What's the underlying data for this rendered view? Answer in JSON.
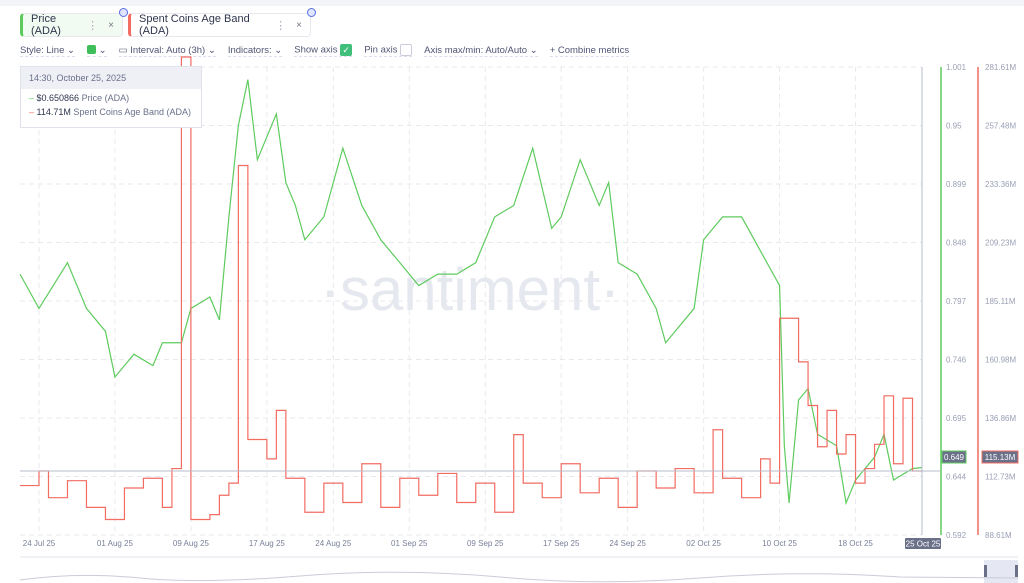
{
  "tabs": [
    {
      "label": "Price (ADA)",
      "color": "#5ecb5e",
      "dots": "⋮",
      "close": "×"
    },
    {
      "label": "Spent Coins Age Band (ADA)",
      "color": "#f26c62",
      "dots": "⋮",
      "close": "×"
    }
  ],
  "toolbar": {
    "style": "Style: Line",
    "interval": "Interval: Auto (3h)",
    "indicators": "Indicators:",
    "show_axis": "Show axis",
    "show_axis_checked": true,
    "pin_axis": "Pin axis",
    "pin_axis_checked": false,
    "axis_minmax": "Axis max/min: Auto/Auto",
    "combine": "+ Combine metrics",
    "line_color": "#3fbf5a"
  },
  "tooltip": {
    "date": "14:30, October 25, 2025",
    "price_value": "$0.650866",
    "price_label": "Price (ADA)",
    "spent_value": "114.71M",
    "spent_label": "Spent Coins Age Band (ADA)"
  },
  "watermark": "·santiment·",
  "chart_data": {
    "type": "line",
    "x_ticks": [
      "24 Jul 25",
      "01 Aug 25",
      "09 Aug 25",
      "17 Aug 25",
      "24 Aug 25",
      "01 Sep 25",
      "09 Sep 25",
      "17 Sep 25",
      "24 Sep 25",
      "02 Oct 25",
      "10 Oct 25",
      "18 Oct 25",
      "25 Oct 25"
    ],
    "x_range": [
      "2025-07-22",
      "2025-10-25"
    ],
    "y_left": {
      "ticks": [
        "1.001",
        "0.95",
        "0.899",
        "0.848",
        "0.797",
        "0.746",
        "0.695",
        "0.644",
        "0.592"
      ],
      "range": [
        0.592,
        1.001
      ],
      "current": "0.649"
    },
    "y_right": {
      "ticks": [
        "281.61M",
        "257.48M",
        "233.36M",
        "209.23M",
        "185.11M",
        "160.98M",
        "136.86M",
        "112.73M",
        "88.61M"
      ],
      "range": [
        88.61,
        281.61
      ],
      "current": "115.13M"
    },
    "grid": true,
    "series": [
      {
        "name": "Price (ADA)",
        "color": "#5ecb5e",
        "axis": "left",
        "points": [
          [
            "2025-07-22",
            0.82
          ],
          [
            "2025-07-24",
            0.79
          ],
          [
            "2025-07-27",
            0.83
          ],
          [
            "2025-07-29",
            0.79
          ],
          [
            "2025-07-31",
            0.77
          ],
          [
            "2025-08-01",
            0.73
          ],
          [
            "2025-08-03",
            0.75
          ],
          [
            "2025-08-05",
            0.74
          ],
          [
            "2025-08-06",
            0.76
          ],
          [
            "2025-08-08",
            0.76
          ],
          [
            "2025-08-09",
            0.79
          ],
          [
            "2025-08-11",
            0.8
          ],
          [
            "2025-08-12",
            0.78
          ],
          [
            "2025-08-13",
            0.87
          ],
          [
            "2025-08-14",
            0.95
          ],
          [
            "2025-08-15",
            0.99
          ],
          [
            "2025-08-16",
            0.92
          ],
          [
            "2025-08-17",
            0.94
          ],
          [
            "2025-08-18",
            0.96
          ],
          [
            "2025-08-19",
            0.9
          ],
          [
            "2025-08-20",
            0.88
          ],
          [
            "2025-08-21",
            0.85
          ],
          [
            "2025-08-23",
            0.87
          ],
          [
            "2025-08-25",
            0.93
          ],
          [
            "2025-08-27",
            0.88
          ],
          [
            "2025-08-29",
            0.85
          ],
          [
            "2025-08-31",
            0.83
          ],
          [
            "2025-09-02",
            0.81
          ],
          [
            "2025-09-04",
            0.82
          ],
          [
            "2025-09-06",
            0.82
          ],
          [
            "2025-09-08",
            0.83
          ],
          [
            "2025-09-10",
            0.87
          ],
          [
            "2025-09-12",
            0.88
          ],
          [
            "2025-09-14",
            0.93
          ],
          [
            "2025-09-16",
            0.86
          ],
          [
            "2025-09-17",
            0.87
          ],
          [
            "2025-09-19",
            0.92
          ],
          [
            "2025-09-21",
            0.88
          ],
          [
            "2025-09-22",
            0.9
          ],
          [
            "2025-09-23",
            0.83
          ],
          [
            "2025-09-25",
            0.82
          ],
          [
            "2025-09-27",
            0.79
          ],
          [
            "2025-09-28",
            0.76
          ],
          [
            "2025-10-01",
            0.79
          ],
          [
            "2025-10-02",
            0.85
          ],
          [
            "2025-10-04",
            0.87
          ],
          [
            "2025-10-06",
            0.87
          ],
          [
            "2025-10-08",
            0.84
          ],
          [
            "2025-10-10",
            0.81
          ],
          [
            "2025-10-10T12",
            0.67
          ],
          [
            "2025-10-11",
            0.62
          ],
          [
            "2025-10-12",
            0.71
          ],
          [
            "2025-10-13",
            0.72
          ],
          [
            "2025-10-14",
            0.68
          ],
          [
            "2025-10-16",
            0.67
          ],
          [
            "2025-10-17",
            0.62
          ],
          [
            "2025-10-18",
            0.64
          ],
          [
            "2025-10-20",
            0.66
          ],
          [
            "2025-10-21",
            0.68
          ],
          [
            "2025-10-22",
            0.64
          ],
          [
            "2025-10-24",
            0.65
          ],
          [
            "2025-10-25",
            0.651
          ]
        ]
      },
      {
        "name": "Spent Coins Age Band (ADA)",
        "color": "#f26c62",
        "axis": "right",
        "step": true,
        "points": [
          [
            "2025-07-22",
            109
          ],
          [
            "2025-07-24",
            115
          ],
          [
            "2025-07-25",
            104
          ],
          [
            "2025-07-27",
            111
          ],
          [
            "2025-07-29",
            100
          ],
          [
            "2025-07-31",
            95
          ],
          [
            "2025-08-02",
            108
          ],
          [
            "2025-08-04",
            112
          ],
          [
            "2025-08-06",
            100
          ],
          [
            "2025-08-07",
            116
          ],
          [
            "2025-08-08",
            300
          ],
          [
            "2025-08-09",
            95
          ],
          [
            "2025-08-11",
            97
          ],
          [
            "2025-08-12",
            105
          ],
          [
            "2025-08-13",
            110
          ],
          [
            "2025-08-14",
            241
          ],
          [
            "2025-08-15",
            128
          ],
          [
            "2025-08-17",
            120
          ],
          [
            "2025-08-18",
            140
          ],
          [
            "2025-08-19",
            112
          ],
          [
            "2025-08-21",
            98
          ],
          [
            "2025-08-23",
            110
          ],
          [
            "2025-08-25",
            102
          ],
          [
            "2025-08-27",
            118
          ],
          [
            "2025-08-29",
            100
          ],
          [
            "2025-08-31",
            112
          ],
          [
            "2025-09-02",
            105
          ],
          [
            "2025-09-04",
            114
          ],
          [
            "2025-09-06",
            102
          ],
          [
            "2025-09-08",
            110
          ],
          [
            "2025-09-10",
            98
          ],
          [
            "2025-09-12",
            130
          ],
          [
            "2025-09-13",
            110
          ],
          [
            "2025-09-15",
            104
          ],
          [
            "2025-09-17",
            118
          ],
          [
            "2025-09-19",
            106
          ],
          [
            "2025-09-21",
            112
          ],
          [
            "2025-09-23",
            100
          ],
          [
            "2025-09-25",
            115
          ],
          [
            "2025-09-27",
            108
          ],
          [
            "2025-09-29",
            116
          ],
          [
            "2025-10-01",
            106
          ],
          [
            "2025-10-03",
            132
          ],
          [
            "2025-10-04",
            112
          ],
          [
            "2025-10-06",
            104
          ],
          [
            "2025-10-08",
            120
          ],
          [
            "2025-10-09",
            110
          ],
          [
            "2025-10-10",
            178
          ],
          [
            "2025-10-12",
            160
          ],
          [
            "2025-10-13",
            142
          ],
          [
            "2025-10-14",
            125
          ],
          [
            "2025-10-15",
            140
          ],
          [
            "2025-10-16",
            122
          ],
          [
            "2025-10-17",
            130
          ],
          [
            "2025-10-18",
            110
          ],
          [
            "2025-10-19",
            116
          ],
          [
            "2025-10-20",
            126
          ],
          [
            "2025-10-21",
            146
          ],
          [
            "2025-10-22",
            118
          ],
          [
            "2025-10-23",
            145
          ],
          [
            "2025-10-24",
            115
          ],
          [
            "2025-10-25",
            114.71
          ]
        ]
      }
    ]
  }
}
